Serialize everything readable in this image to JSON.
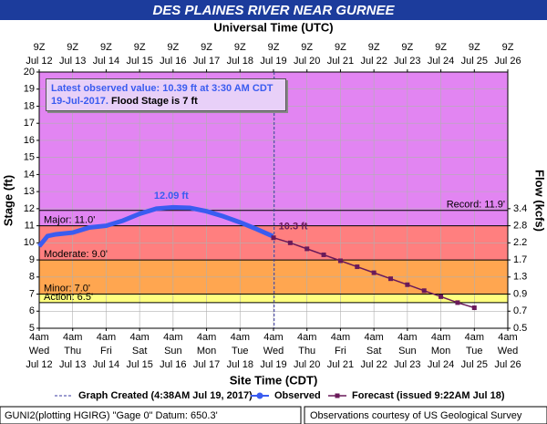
{
  "chart_data": {
    "type": "line",
    "title": "DES PLAINES RIVER NEAR GURNEE",
    "top_axis_label": "Universal Time (UTC)",
    "x_label": "Site Time (CDT)",
    "y_label": "Stage (ft)",
    "xlim": [
      0,
      14
    ],
    "ylim": [
      5,
      20
    ],
    "yticks": [
      5,
      6,
      7,
      8,
      9,
      10,
      11,
      12,
      13,
      14,
      15,
      16,
      17,
      18,
      19,
      20
    ],
    "grid": true,
    "xticks": [
      {
        "value": 0,
        "label": "Jul 12"
      },
      {
        "value": 1,
        "label": "Jul 13"
      },
      {
        "value": 2,
        "label": "Jul 14"
      },
      {
        "value": 3,
        "label": "Jul 15"
      },
      {
        "value": 4,
        "label": "Jul 16"
      },
      {
        "value": 5,
        "label": "Jul 17"
      },
      {
        "value": 6,
        "label": "Jul 18"
      },
      {
        "value": 7,
        "label": "Jul 19"
      },
      {
        "value": 8,
        "label": "Jul 20"
      },
      {
        "value": 9,
        "label": "Jul 21"
      },
      {
        "value": 10,
        "label": "Jul 22"
      },
      {
        "value": 11,
        "label": "Jul 23"
      },
      {
        "value": 12,
        "label": "Jul 24"
      },
      {
        "value": 13,
        "label": "Jul 25"
      },
      {
        "value": 14,
        "label": "Jul 26"
      }
    ],
    "xtick_times": [
      "4am",
      "4am",
      "4am",
      "4am",
      "4am",
      "4am",
      "4am",
      "4am",
      "4am",
      "4am",
      "4am",
      "4am",
      "4am",
      "4am",
      "4am"
    ],
    "xtick_weekdays": [
      "Wed",
      "Thu",
      "Fri",
      "Sat",
      "Sun",
      "Mon",
      "Tue",
      "Wed",
      "Thu",
      "Fri",
      "Sat",
      "Sun",
      "Mon",
      "Tue",
      "Wed"
    ],
    "top_tick_times": [
      "9Z",
      "9Z",
      "9Z",
      "9Z",
      "9Z",
      "9Z",
      "9Z",
      "9Z",
      "9Z",
      "9Z",
      "9Z",
      "9Z",
      "9Z",
      "9Z",
      "9Z"
    ],
    "flow_axis": {
      "label": "Flow (kcfs)",
      "ticks": [
        {
          "flow": 0.5,
          "stage": 5
        },
        {
          "flow": 0.7,
          "stage": 6
        },
        {
          "flow": 0.9,
          "stage": 7
        },
        {
          "flow": 1.3,
          "stage": 8
        },
        {
          "flow": 1.7,
          "stage": 9
        },
        {
          "flow": 2.2,
          "stage": 10
        },
        {
          "flow": 2.8,
          "stage": 11
        },
        {
          "flow": 3.4,
          "stage": 12
        }
      ]
    },
    "flood_categories": [
      {
        "label": "Major: 11.0'",
        "value": 11,
        "color": "#e285f2"
      },
      {
        "label": "Moderate: 9.0'",
        "value": 9,
        "color": "#ff7f7f"
      },
      {
        "label": "Minor: 7.0'",
        "value": 7,
        "color": "#ffa650"
      },
      {
        "label": "Action: 6.5'",
        "value": 6.5,
        "color": "#ffff80"
      }
    ],
    "record": {
      "label": "Record: 11.9'",
      "value": 11.9
    },
    "graph_created": {
      "label": "Graph Created (4:38AM Jul 19, 2017)",
      "x": 7.02
    },
    "series": [
      {
        "name": "Observed",
        "color": "#3a5cf0",
        "x": [
          0,
          0.25,
          0.5,
          1,
          1.5,
          2,
          2.5,
          3,
          3.5,
          4,
          4.5,
          5,
          5.5,
          6,
          6.5,
          6.98
        ],
        "values": [
          9.8,
          10.4,
          10.5,
          10.6,
          10.9,
          11.0,
          11.3,
          11.7,
          12.0,
          12.08,
          12.05,
          11.85,
          11.55,
          11.2,
          10.8,
          10.39
        ]
      },
      {
        "name": "Forecast (issued 9:22AM Jul 18)",
        "color": "#6a1a5a",
        "x": [
          7,
          7.5,
          8,
          8.5,
          9,
          9.5,
          10,
          10.5,
          11,
          11.5,
          12,
          12.5,
          13
        ],
        "values": [
          10.3,
          10.0,
          9.65,
          9.3,
          8.95,
          8.6,
          8.25,
          7.9,
          7.55,
          7.2,
          6.85,
          6.5,
          6.2
        ]
      }
    ],
    "annotations": [
      {
        "text": "12.09 ft",
        "x": 3.7,
        "y": 12.09
      },
      {
        "text": "10.3 ft",
        "x": 7.1,
        "y": 10.3
      }
    ],
    "info_observed": "Latest observed value: 10.39 ft at 3:30 AM CDT 19-Jul-2017.",
    "info_flood": "Flood Stage is 7 ft",
    "footer_left": "GUNI2(plotting HGIRG) \"Gage 0\" Datum: 650.3'",
    "footer_right": "Observations courtesy of US Geological Survey"
  }
}
